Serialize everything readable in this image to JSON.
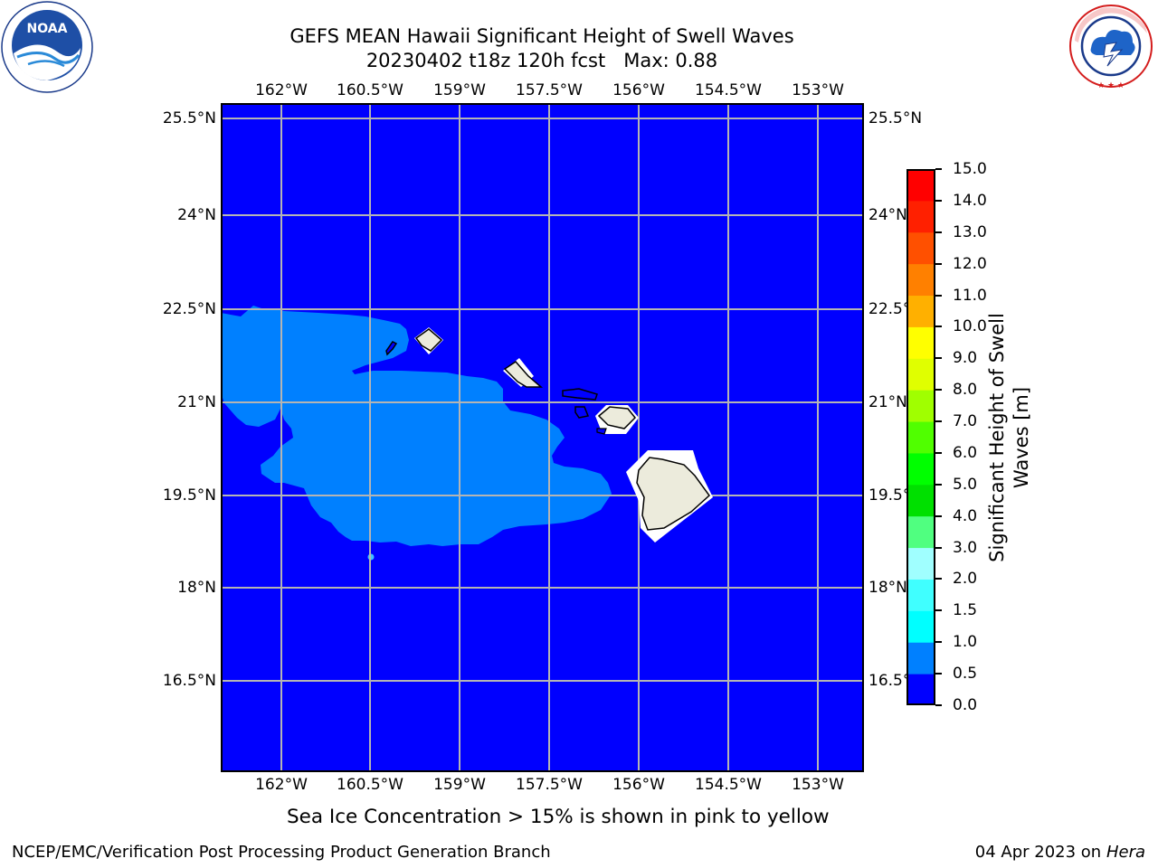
{
  "header": {
    "title_line1": "GEFS MEAN Hawaii Significant Height of Swell Waves",
    "title_line2": "20230402 t18z 120h fcst   Max: 0.88"
  },
  "logos": {
    "noaa": {
      "text": "NOAA",
      "ring_text": "NATIONAL OCEANIC AND ATMOSPHERIC ADMINISTRATION · U.S. DEPARTMENT OF COMMERCE"
    },
    "nws": {
      "ring_text": "NATIONAL WEATHER SERVICE"
    }
  },
  "map": {
    "lon_labels": [
      "162°W",
      "160.5°W",
      "159°W",
      "157.5°W",
      "156°W",
      "154.5°W",
      "153°W"
    ],
    "lat_labels": [
      "25.5°N",
      "24°N",
      "22.5°N",
      "21°N",
      "19.5°N",
      "18°N",
      "16.5°N"
    ],
    "colors": {
      "ocean": "#0000ff",
      "swell_band": "#0080ff",
      "land": "#ecebdc",
      "grid": "#b4b4b4"
    }
  },
  "colorbar": {
    "label": "Significant Height of Swell Waves [m]",
    "ticks": [
      "0.0",
      "0.5",
      "1.0",
      "1.5",
      "2.0",
      "3.0",
      "4.0",
      "5.0",
      "6.0",
      "7.0",
      "8.0",
      "9.0",
      "10.0",
      "11.0",
      "12.0",
      "13.0",
      "14.0",
      "15.0"
    ],
    "colors": [
      "#0000ff",
      "#0080ff",
      "#00ffff",
      "#40ffff",
      "#80ffff",
      "#a0ffff",
      "#50ff80",
      "#00e000",
      "#00ff00",
      "#50ff00",
      "#a0ff00",
      "#e0ff00",
      "#ffff00",
      "#ffe000",
      "#ffb000",
      "#ff8000",
      "#ff5000",
      "#ff2000",
      "#ff0000"
    ]
  },
  "notes": {
    "sea_ice": "Sea Ice Concentration > 15% is shown in pink to yellow"
  },
  "footer": {
    "left": "NCEP/EMC/Verification Post Processing Product Generation Branch",
    "right_prefix": "04 Apr 2023 on ",
    "right_machine": "Hera"
  }
}
